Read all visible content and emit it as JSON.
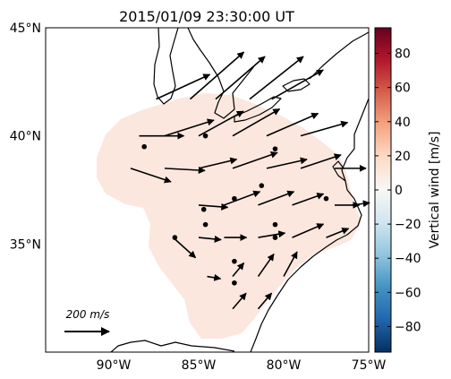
{
  "title": "2015/01/09 23:30:00 UT",
  "lat_labels": [
    {
      "lat": 45,
      "text": "45°N"
    },
    {
      "lat": 40,
      "text": "40°N"
    },
    {
      "lat": 35,
      "text": "35°N"
    }
  ],
  "lon_labels": [
    {
      "lon": -90,
      "text": "90°W"
    },
    {
      "lon": -85,
      "text": "85°W"
    },
    {
      "lon": -80,
      "text": "80°W"
    },
    {
      "lon": -75,
      "text": "75°W"
    }
  ],
  "colorbar": {
    "label": "Vertical wind [m/s]",
    "min": -95,
    "max": 95,
    "ticks": [
      -80,
      -60,
      -40,
      -20,
      0,
      20,
      40,
      60,
      80
    ],
    "tick_labels": [
      "−80",
      "−60",
      "−40",
      "−20",
      "0",
      "20",
      "40",
      "60",
      "80"
    ],
    "colors": [
      "#053061",
      "#2166ac",
      "#4393c3",
      "#92c5de",
      "#d1e5f0",
      "#f7f7f7",
      "#fddbc7",
      "#f4a582",
      "#d6604d",
      "#b2182b",
      "#67001f"
    ]
  },
  "field_color": "#fbe7de",
  "legend": {
    "label_html": "200 <i>m</i>/<i>s</i>",
    "speed": 200
  },
  "chart_data": {
    "type": "vector-field",
    "extent": {
      "lon_min": -94,
      "lon_max": -75,
      "lat_min": 30,
      "lat_max": 45
    },
    "vectors": [
      {
        "lon": -88.5,
        "lat": 40,
        "u": 200,
        "v": 0
      },
      {
        "lon": -87,
        "lat": 40,
        "u": 220,
        "v": 70
      },
      {
        "lon": -85,
        "lat": 40,
        "u": 200,
        "v": 110
      },
      {
        "lon": -83,
        "lat": 40,
        "u": 210,
        "v": 120
      },
      {
        "lon": -81,
        "lat": 40,
        "u": 230,
        "v": 100
      },
      {
        "lon": -79,
        "lat": 40,
        "u": 210,
        "v": 60
      },
      {
        "lon": -87.5,
        "lat": 41.7,
        "u": 240,
        "v": 110
      },
      {
        "lon": -85.5,
        "lat": 41.7,
        "u": 240,
        "v": 210
      },
      {
        "lon": -84,
        "lat": 41.7,
        "u": 220,
        "v": 190
      },
      {
        "lon": -82,
        "lat": 41.7,
        "u": 240,
        "v": 190
      },
      {
        "lon": -80.7,
        "lat": 41.7,
        "u": 230,
        "v": 130
      },
      {
        "lon": -89,
        "lat": 38.5,
        "u": 180,
        "v": -60
      },
      {
        "lon": -87,
        "lat": 38.5,
        "u": 180,
        "v": -10
      },
      {
        "lon": -85,
        "lat": 38.5,
        "u": 170,
        "v": 40
      },
      {
        "lon": -83,
        "lat": 38.5,
        "u": 200,
        "v": 70
      },
      {
        "lon": -81,
        "lat": 38.5,
        "u": 180,
        "v": 40
      },
      {
        "lon": -79,
        "lat": 38.5,
        "u": 180,
        "v": 60
      },
      {
        "lon": -77,
        "lat": 38.5,
        "u": 140,
        "v": 0
      },
      {
        "lon": -85,
        "lat": 36.8,
        "u": 130,
        "v": -10
      },
      {
        "lon": -83.5,
        "lat": 36.8,
        "u": 160,
        "v": 60
      },
      {
        "lon": -81.5,
        "lat": 36.8,
        "u": 160,
        "v": 60
      },
      {
        "lon": -79.5,
        "lat": 36.8,
        "u": 140,
        "v": 50
      },
      {
        "lon": -77,
        "lat": 36.8,
        "u": 110,
        "v": 0
      },
      {
        "lon": -76,
        "lat": 36.8,
        "u": 80,
        "v": 10
      },
      {
        "lon": -86.5,
        "lat": 35.3,
        "u": 100,
        "v": -90
      },
      {
        "lon": -85,
        "lat": 35.3,
        "u": 100,
        "v": -10
      },
      {
        "lon": -83.5,
        "lat": 35.3,
        "u": 100,
        "v": 0
      },
      {
        "lon": -81.5,
        "lat": 35.3,
        "u": 120,
        "v": 20
      },
      {
        "lon": -79.5,
        "lat": 35.3,
        "u": 140,
        "v": 60
      },
      {
        "lon": -77.5,
        "lat": 35.3,
        "u": 100,
        "v": 40
      },
      {
        "lon": -84.5,
        "lat": 33.5,
        "u": 60,
        "v": -10
      },
      {
        "lon": -83,
        "lat": 33.5,
        "u": 50,
        "v": 60
      },
      {
        "lon": -81.5,
        "lat": 33.5,
        "u": 70,
        "v": 100
      },
      {
        "lon": -80,
        "lat": 33.5,
        "u": 60,
        "v": 110
      },
      {
        "lon": -83,
        "lat": 32,
        "u": 60,
        "v": 70
      },
      {
        "lon": -81.5,
        "lat": 32,
        "u": 60,
        "v": 70
      }
    ],
    "stations": [
      {
        "lon": -88.2,
        "lat": 39.5
      },
      {
        "lon": -84.6,
        "lat": 40.0
      },
      {
        "lon": -80.5,
        "lat": 39.4
      },
      {
        "lon": -81.3,
        "lat": 37.7
      },
      {
        "lon": -82.9,
        "lat": 37.1
      },
      {
        "lon": -84.7,
        "lat": 36.6
      },
      {
        "lon": -84.6,
        "lat": 35.9
      },
      {
        "lon": -86.4,
        "lat": 35.3
      },
      {
        "lon": -80.5,
        "lat": 35.9
      },
      {
        "lon": -80.5,
        "lat": 35.3
      },
      {
        "lon": -77.5,
        "lat": 37.1
      },
      {
        "lon": -82.9,
        "lat": 34.2
      },
      {
        "lon": -82.9,
        "lat": 33.2
      }
    ]
  }
}
